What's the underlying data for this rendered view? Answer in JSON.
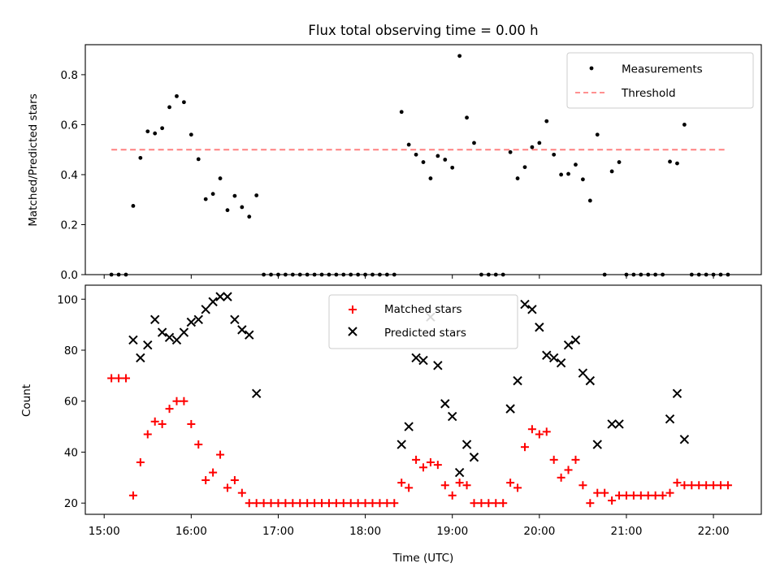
{
  "chart_data": [
    {
      "type": "scatter",
      "title": "Flux total observing time = 0.00 h",
      "xlabel": "",
      "ylabel": "Matched/Predicted stars",
      "xlim": [
        "14:47",
        "22:33"
      ],
      "ylim": [
        0,
        0.92
      ],
      "yticks": [
        0.0,
        0.2,
        0.4,
        0.6,
        0.8
      ],
      "ytick_labels": [
        "0.0",
        "0.2",
        "0.4",
        "0.6",
        "0.8"
      ],
      "legend": {
        "location": "top-right",
        "entries": [
          "Measurements",
          "Threshold"
        ]
      },
      "threshold": {
        "name": "Threshold",
        "value": 0.5,
        "x_start": "15:05",
        "x_end": "22:10",
        "color": "#ff8080",
        "style": "dashed"
      },
      "series": [
        {
          "name": "Measurements",
          "color": "#000000",
          "marker": "dot",
          "points": [
            [
              "15:05",
              0
            ],
            [
              "15:10",
              0
            ],
            [
              "15:15",
              0
            ],
            [
              "15:20",
              0.275
            ],
            [
              "15:25",
              0.467
            ],
            [
              "15:30",
              0.573
            ],
            [
              "15:35",
              0.565
            ],
            [
              "15:40",
              0.586
            ],
            [
              "15:45",
              0.67
            ],
            [
              "15:50",
              0.714
            ],
            [
              "15:55",
              0.69
            ],
            [
              "16:00",
              0.56
            ],
            [
              "16:05",
              0.462
            ],
            [
              "16:10",
              0.302
            ],
            [
              "16:15",
              0.323
            ],
            [
              "16:20",
              0.385
            ],
            [
              "16:25",
              0.258
            ],
            [
              "16:30",
              0.315
            ],
            [
              "16:35",
              0.27
            ],
            [
              "16:40",
              0.232
            ],
            [
              "16:45",
              0.317
            ],
            [
              "16:50",
              0
            ],
            [
              "16:55",
              0
            ],
            [
              "17:00",
              0
            ],
            [
              "17:05",
              0
            ],
            [
              "17:10",
              0
            ],
            [
              "17:15",
              0
            ],
            [
              "17:20",
              0
            ],
            [
              "17:25",
              0
            ],
            [
              "17:30",
              0
            ],
            [
              "17:35",
              0
            ],
            [
              "17:40",
              0
            ],
            [
              "17:45",
              0
            ],
            [
              "17:50",
              0
            ],
            [
              "17:55",
              0
            ],
            [
              "18:00",
              0
            ],
            [
              "18:05",
              0
            ],
            [
              "18:10",
              0
            ],
            [
              "18:15",
              0
            ],
            [
              "18:20",
              0
            ],
            [
              "18:25",
              0.651
            ],
            [
              "18:30",
              0.52
            ],
            [
              "18:35",
              0.48
            ],
            [
              "18:40",
              0.45
            ],
            [
              "18:45",
              0.385
            ],
            [
              "18:50",
              0.475
            ],
            [
              "18:55",
              0.46
            ],
            [
              "19:00",
              0.428
            ],
            [
              "19:05",
              0.875
            ],
            [
              "19:10",
              0.628
            ],
            [
              "19:15",
              0.527
            ],
            [
              "19:20",
              0
            ],
            [
              "19:25",
              0
            ],
            [
              "19:30",
              0
            ],
            [
              "19:35",
              0
            ],
            [
              "19:40",
              0.49
            ],
            [
              "19:45",
              0.385
            ],
            [
              "19:50",
              0.43
            ],
            [
              "19:55",
              0.51
            ],
            [
              "20:00",
              0.527
            ],
            [
              "20:05",
              0.614
            ],
            [
              "20:10",
              0.48
            ],
            [
              "20:15",
              0.4
            ],
            [
              "20:20",
              0.403
            ],
            [
              "20:25",
              0.44
            ],
            [
              "20:30",
              0.381
            ],
            [
              "20:35",
              0.296
            ],
            [
              "20:40",
              0.56
            ],
            [
              "20:45",
              0
            ],
            [
              "20:50",
              0.413
            ],
            [
              "20:55",
              0.45
            ],
            [
              "21:00",
              0
            ],
            [
              "21:05",
              0
            ],
            [
              "21:10",
              0
            ],
            [
              "21:15",
              0
            ],
            [
              "21:20",
              0
            ],
            [
              "21:25",
              0
            ],
            [
              "21:30",
              0.452
            ],
            [
              "21:35",
              0.445
            ],
            [
              "21:40",
              0.6
            ],
            [
              "21:45",
              0
            ],
            [
              "21:50",
              0
            ],
            [
              "21:55",
              0
            ],
            [
              "22:00",
              0
            ],
            [
              "22:05",
              0
            ],
            [
              "22:10",
              0
            ]
          ]
        }
      ]
    },
    {
      "type": "scatter",
      "title": "",
      "xlabel": "Time (UTC)",
      "ylabel": "Count",
      "xlim": [
        "14:47",
        "22:33"
      ],
      "ylim": [
        15.6,
        105.5
      ],
      "yticks": [
        20,
        40,
        60,
        80,
        100
      ],
      "ytick_labels": [
        "20",
        "40",
        "60",
        "80",
        "100"
      ],
      "xticks": [
        "15:00",
        "16:00",
        "17:00",
        "18:00",
        "19:00",
        "20:00",
        "21:00",
        "22:00"
      ],
      "xtick_labels": [
        "15:00",
        "16:00",
        "17:00",
        "18:00",
        "19:00",
        "20:00",
        "21:00",
        "22:00"
      ],
      "legend": {
        "location": "top-center",
        "entries": [
          "Matched stars",
          "Predicted stars"
        ]
      },
      "series": [
        {
          "name": "Matched stars",
          "color": "#ff0000",
          "marker": "plus",
          "points": [
            [
              "15:05",
              69
            ],
            [
              "15:10",
              69
            ],
            [
              "15:15",
              69
            ],
            [
              "15:20",
              23
            ],
            [
              "15:25",
              36
            ],
            [
              "15:30",
              47
            ],
            [
              "15:35",
              52
            ],
            [
              "15:40",
              51
            ],
            [
              "15:45",
              57
            ],
            [
              "15:50",
              60
            ],
            [
              "15:55",
              60
            ],
            [
              "16:00",
              51
            ],
            [
              "16:05",
              43
            ],
            [
              "16:10",
              29
            ],
            [
              "16:15",
              32
            ],
            [
              "16:20",
              39
            ],
            [
              "16:25",
              26
            ],
            [
              "16:30",
              29
            ],
            [
              "16:35",
              24
            ],
            [
              "16:40",
              20
            ],
            [
              "16:45",
              20
            ],
            [
              "16:50",
              20
            ],
            [
              "16:55",
              20
            ],
            [
              "17:00",
              20
            ],
            [
              "17:05",
              20
            ],
            [
              "17:10",
              20
            ],
            [
              "17:15",
              20
            ],
            [
              "17:20",
              20
            ],
            [
              "17:25",
              20
            ],
            [
              "17:30",
              20
            ],
            [
              "17:35",
              20
            ],
            [
              "17:40",
              20
            ],
            [
              "17:45",
              20
            ],
            [
              "17:50",
              20
            ],
            [
              "17:55",
              20
            ],
            [
              "18:00",
              20
            ],
            [
              "18:05",
              20
            ],
            [
              "18:10",
              20
            ],
            [
              "18:15",
              20
            ],
            [
              "18:20",
              20
            ],
            [
              "18:25",
              28
            ],
            [
              "18:30",
              26
            ],
            [
              "18:35",
              37
            ],
            [
              "18:40",
              34
            ],
            [
              "18:45",
              36
            ],
            [
              "18:50",
              35
            ],
            [
              "18:55",
              27
            ],
            [
              "19:00",
              23
            ],
            [
              "19:05",
              28
            ],
            [
              "19:10",
              27
            ],
            [
              "19:15",
              20
            ],
            [
              "19:20",
              20
            ],
            [
              "19:25",
              20
            ],
            [
              "19:30",
              20
            ],
            [
              "19:35",
              20
            ],
            [
              "19:40",
              28
            ],
            [
              "19:45",
              26
            ],
            [
              "19:50",
              42
            ],
            [
              "19:55",
              49
            ],
            [
              "20:00",
              47
            ],
            [
              "20:05",
              48
            ],
            [
              "20:10",
              37
            ],
            [
              "20:15",
              30
            ],
            [
              "20:20",
              33
            ],
            [
              "20:25",
              37
            ],
            [
              "20:30",
              27
            ],
            [
              "20:35",
              20
            ],
            [
              "20:40",
              24
            ],
            [
              "20:45",
              24
            ],
            [
              "20:50",
              21
            ],
            [
              "20:55",
              23
            ],
            [
              "21:00",
              23
            ],
            [
              "21:05",
              23
            ],
            [
              "21:10",
              23
            ],
            [
              "21:15",
              23
            ],
            [
              "21:20",
              23
            ],
            [
              "21:25",
              23
            ],
            [
              "21:30",
              24
            ],
            [
              "21:35",
              28
            ],
            [
              "21:40",
              27
            ],
            [
              "21:45",
              27
            ],
            [
              "21:50",
              27
            ],
            [
              "21:55",
              27
            ],
            [
              "22:00",
              27
            ],
            [
              "22:05",
              27
            ],
            [
              "22:10",
              27
            ]
          ]
        },
        {
          "name": "Predicted stars",
          "color": "#000000",
          "marker": "x",
          "points": [
            [
              "15:20",
              84
            ],
            [
              "15:25",
              77
            ],
            [
              "15:30",
              82
            ],
            [
              "15:35",
              92
            ],
            [
              "15:40",
              87
            ],
            [
              "15:45",
              85
            ],
            [
              "15:50",
              84
            ],
            [
              "15:55",
              87
            ],
            [
              "16:00",
              91
            ],
            [
              "16:05",
              92
            ],
            [
              "16:10",
              96
            ],
            [
              "16:15",
              99
            ],
            [
              "16:20",
              101
            ],
            [
              "16:25",
              101
            ],
            [
              "16:30",
              92
            ],
            [
              "16:35",
              88
            ],
            [
              "16:40",
              86
            ],
            [
              "16:45",
              63
            ],
            [
              "18:25",
              43
            ],
            [
              "18:30",
              50
            ],
            [
              "18:35",
              77
            ],
            [
              "18:40",
              76
            ],
            [
              "18:45",
              93
            ],
            [
              "18:50",
              74
            ],
            [
              "18:55",
              59
            ],
            [
              "19:00",
              54
            ],
            [
              "19:05",
              32
            ],
            [
              "19:10",
              43
            ],
            [
              "19:15",
              38
            ],
            [
              "19:40",
              57
            ],
            [
              "19:45",
              68
            ],
            [
              "19:50",
              98
            ],
            [
              "19:55",
              96
            ],
            [
              "20:00",
              89
            ],
            [
              "20:05",
              78
            ],
            [
              "20:10",
              77
            ],
            [
              "20:15",
              75
            ],
            [
              "20:20",
              82
            ],
            [
              "20:25",
              84
            ],
            [
              "20:30",
              71
            ],
            [
              "20:35",
              68
            ],
            [
              "20:40",
              43
            ],
            [
              "20:50",
              51
            ],
            [
              "20:55",
              51
            ],
            [
              "21:30",
              53
            ],
            [
              "21:35",
              63
            ],
            [
              "21:40",
              45
            ]
          ]
        }
      ]
    }
  ]
}
